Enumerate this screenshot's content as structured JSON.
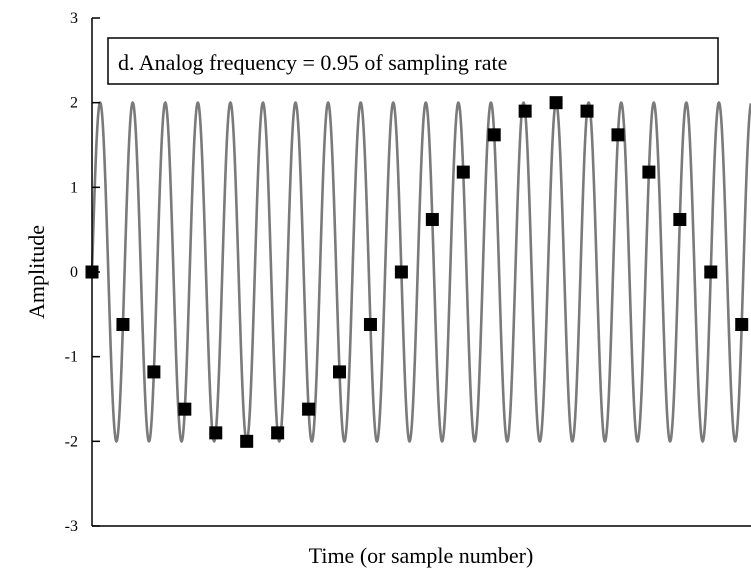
{
  "chart_data": {
    "type": "line",
    "annotation": "d. Analog frequency = 0.95 of sampling rate",
    "xlabel": "Time (or sample number)",
    "ylabel": "Amplitude",
    "ylim": [
      -3,
      3
    ],
    "xlim": [
      0,
      21.3
    ],
    "yticks": [
      {
        "value": 3,
        "label": "3"
      },
      {
        "value": 2,
        "label": "2"
      },
      {
        "value": 1,
        "label": "1"
      },
      {
        "value": 0,
        "label": "0"
      },
      {
        "value": -1,
        "label": "-1"
      },
      {
        "value": -2,
        "label": "-2"
      },
      {
        "value": -3,
        "label": "-3"
      }
    ],
    "grid": false,
    "legend": "none",
    "series": [
      {
        "kind": "continuous-sine",
        "amplitude": 2,
        "cycles_per_sample": 0.95,
        "color": "#7a7a7a"
      },
      {
        "kind": "samples",
        "marker": "square",
        "color": "#000000",
        "x": [
          0,
          1,
          2,
          3,
          4,
          5,
          6,
          7,
          8,
          9,
          10,
          11,
          12,
          13,
          14,
          15,
          16,
          17,
          18,
          19,
          20,
          21
        ],
        "y": [
          0,
          -0.62,
          -1.18,
          -1.62,
          -1.9,
          -2.0,
          -1.9,
          -1.62,
          -1.18,
          -0.62,
          0,
          0.62,
          1.18,
          1.62,
          1.9,
          2.0,
          1.9,
          1.62,
          1.18,
          0.62,
          0,
          -0.62
        ]
      }
    ]
  }
}
